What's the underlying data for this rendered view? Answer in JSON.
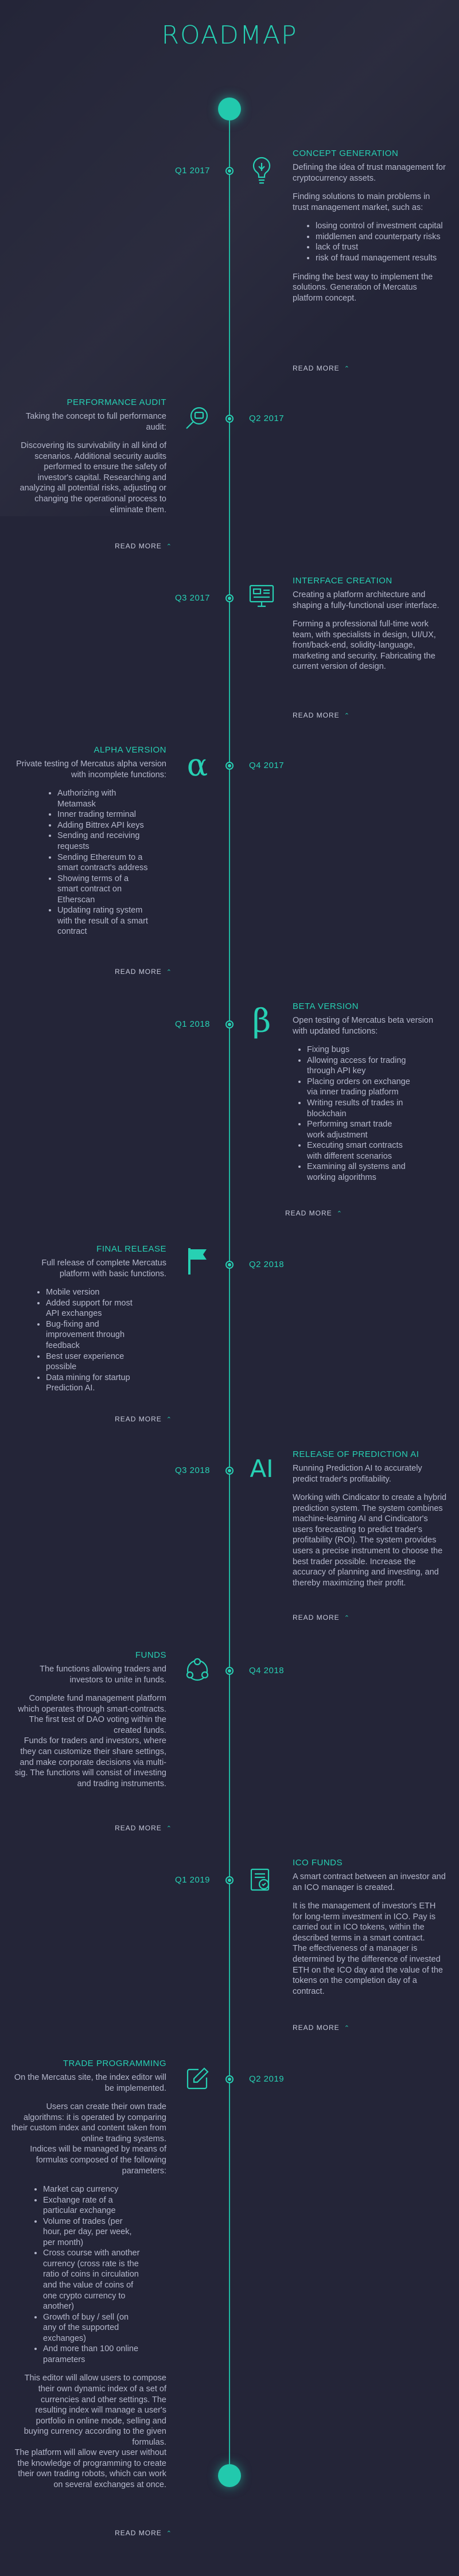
{
  "page_title": "ROADMAP",
  "read_more_label": "READ MORE",
  "colors": {
    "accent": "#27d0b3",
    "background": "#242538",
    "text": "#b4b7cb"
  },
  "items": [
    {
      "date": "Q1 2017",
      "title": "CONCEPT GENERATION",
      "icon": "lightbulb-icon",
      "paragraphs": [
        "Defining the idea of trust management for cryptocurrency assets.",
        "Finding solutions to main problems in trust management market, such as:"
      ],
      "bullets": [
        "losing control of investment capital",
        "middlemen and counterparty risks",
        "lack of trust",
        "risk of fraud management results"
      ],
      "after": [
        "Finding the best way to implement the solutions. Generation of Mercatus platform concept."
      ]
    },
    {
      "date": "Q2 2017",
      "title": "PERFORMANCE AUDIT",
      "icon": "magnifier-icon",
      "paragraphs": [
        "Taking the concept to full performance audit:",
        "Discovering its survivability in all kind of scenarios. Additional security audits performed to ensure the safety of investor's capital. Researching and analyzing all potential risks, adjusting or changing the operational process to eliminate them."
      ],
      "bullets": [],
      "after": []
    },
    {
      "date": "Q3 2017",
      "title": "INTERFACE CREATION",
      "icon": "monitor-icon",
      "paragraphs": [
        "Creating a platform architecture and shaping a fully-functional user interface.",
        "Forming a professional full-time work team, with specialists in design, UI/UX, front/back-end, solidity-language, marketing and security. Fabricating the current version of design."
      ],
      "bullets": [],
      "after": []
    },
    {
      "date": "Q4 2017",
      "title": "ALPHA VERSION",
      "icon": "alpha-icon",
      "glyph": "α",
      "paragraphs": [
        "Private testing of Mercatus alpha version with incomplete functions:"
      ],
      "bullets": [
        "Authorizing with Metamask",
        "Inner trading terminal",
        "Adding Bittrex API keys",
        "Sending and receiving requests",
        "Sending Ethereum to a smart contract's address",
        "Showing terms of a smart contract on Etherscan",
        "Updating rating system with the result of a smart contract"
      ],
      "after": []
    },
    {
      "date": "Q1 2018",
      "title": "BETA VERSION",
      "icon": "beta-icon",
      "glyph": "β",
      "paragraphs": [
        "Open testing of Mercatus beta version with updated functions:"
      ],
      "bullets": [
        "Fixing bugs",
        "Allowing access for trading through API key",
        "Placing orders on exchange via inner trading platform",
        "Writing results of trades in blockchain",
        "Performing smart trade work adjustment",
        "Executing smart contracts with different scenarios",
        "Examining all systems and working algorithms"
      ],
      "after": []
    },
    {
      "date": "Q2 2018",
      "title": "FINAL RELEASE",
      "icon": "flag-icon",
      "paragraphs": [
        "Full release of complete Mercatus platform with basic functions."
      ],
      "bullets": [
        "Mobile version",
        "Added support for most API exchanges",
        "Bug-fixing and improvement through feedback",
        "Best user experience possible",
        "Data mining for startup Prediction AI."
      ],
      "after": []
    },
    {
      "date": "Q3 2018",
      "title": "RELEASE OF PREDICTION AI",
      "icon": "ai-icon",
      "glyph": "AI",
      "paragraphs": [
        "Running Prediction AI to accurately predict trader's profitability.",
        "Working with Cindicator to create a hybrid prediction system. The system combines machine-learning AI and Cindicator's users forecasting to predict trader's profitability (ROI). The system provides users a precise instrument to choose the best trader possible. Increase the accuracy of planning and investing, and thereby maximizing their profit."
      ],
      "bullets": [],
      "after": []
    },
    {
      "date": "Q4 2018",
      "title": "FUNDS",
      "icon": "network-icon",
      "paragraphs": [
        "The functions allowing traders and investors to unite in funds.",
        "Complete fund management platform which operates through smart-contracts.\nThe first test of DAO voting within the created funds.\nFunds for traders and investors, where they can customize their share settings, and make corporate decisions via multi-sig. The functions will consist of investing and trading instruments."
      ],
      "bullets": [],
      "after": []
    },
    {
      "date": "Q1 2019",
      "title": "ICO FUNDS",
      "icon": "document-icon",
      "paragraphs": [
        "A smart contract between an investor and an ICO manager is created.",
        "It is the management of investor's ETH for long-term investment in ICO. Pay is carried out in ICO tokens, within the described terms in a smart contract.\nThe effectiveness of a manager is determined by the difference of invested ETH on the ICO day and the value of the tokens on the completion day of a contract."
      ],
      "bullets": [],
      "after": []
    },
    {
      "date": "Q2 2019",
      "title": "TRADE PROGRAMMING",
      "icon": "edit-icon",
      "paragraphs": [
        "On the Mercatus site, the index editor will be implemented.",
        "Users can create their own trade algorithms: it is operated by comparing their custom index and content taken from online trading systems.\nIndices will be managed by means of formulas composed of the following parameters:"
      ],
      "bullets": [
        "Market cap currency",
        "Exchange rate of a particular exchange",
        "Volume of trades (per hour, per day, per week, per month)",
        "Cross course with another currency (cross rate is the ratio of coins in circulation and the value of coins of one crypto currency to another)",
        "Growth of buy / sell (on any of the supported exchanges)",
        "And more than 100 online parameters"
      ],
      "after": [
        "This editor will allow users to compose their own dynamic index of a set of currencies and other settings. The resulting index will manage a user's portfolio in online mode, selling and buying currency according to the given formulas.\nThe platform will allow every user without the knowledge of programming to create their own trading robots, which can work on several exchanges at once."
      ]
    }
  ]
}
